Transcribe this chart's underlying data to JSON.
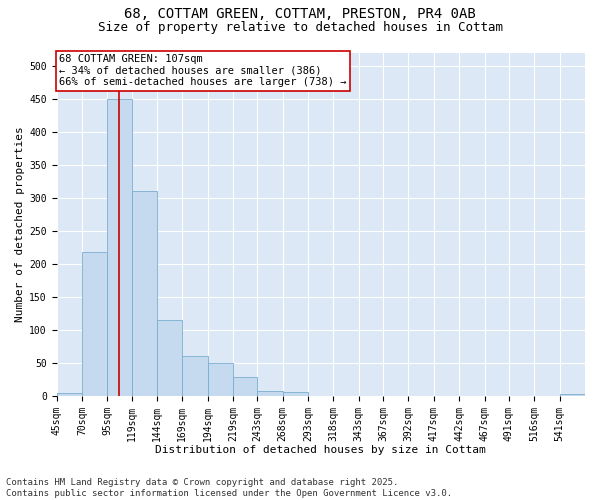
{
  "title_line1": "68, COTTAM GREEN, COTTAM, PRESTON, PR4 0AB",
  "title_line2": "Size of property relative to detached houses in Cottam",
  "xlabel": "Distribution of detached houses by size in Cottam",
  "ylabel": "Number of detached properties",
  "bar_color": "#c5d9ef",
  "bar_edge_color": "#7aadce",
  "background_color": "#dce8f5",
  "grid_color": "#ffffff",
  "annotation_box_color": "#cc0000",
  "annotation_text": "68 COTTAM GREEN: 107sqm\n← 34% of detached houses are smaller (386)\n66% of semi-detached houses are larger (738) →",
  "red_line_x": 107,
  "property_line_color": "#cc0000",
  "categories": [
    "45sqm",
    "70sqm",
    "95sqm",
    "119sqm",
    "144sqm",
    "169sqm",
    "194sqm",
    "219sqm",
    "243sqm",
    "268sqm",
    "293sqm",
    "318sqm",
    "343sqm",
    "367sqm",
    "392sqm",
    "417sqm",
    "442sqm",
    "467sqm",
    "491sqm",
    "516sqm",
    "541sqm"
  ],
  "bin_left": [
    45,
    70,
    95,
    119,
    144,
    169,
    194,
    219,
    243,
    268,
    293,
    318,
    343,
    367,
    392,
    417,
    442,
    467,
    491,
    516,
    541
  ],
  "bin_right": [
    70,
    95,
    119,
    144,
    169,
    194,
    219,
    243,
    268,
    293,
    318,
    343,
    367,
    392,
    417,
    442,
    467,
    491,
    516,
    541,
    566
  ],
  "bar_heights": [
    5,
    218,
    450,
    310,
    115,
    60,
    50,
    28,
    8,
    6,
    0,
    0,
    0,
    0,
    0,
    0,
    0,
    0,
    0,
    0,
    3
  ],
  "ylim": [
    0,
    520
  ],
  "yticks": [
    0,
    50,
    100,
    150,
    200,
    250,
    300,
    350,
    400,
    450,
    500
  ],
  "xlim_left": 45,
  "xlim_right": 566,
  "footer_text": "Contains HM Land Registry data © Crown copyright and database right 2025.\nContains public sector information licensed under the Open Government Licence v3.0.",
  "title_fontsize": 10,
  "subtitle_fontsize": 9,
  "axis_label_fontsize": 8,
  "tick_fontsize": 7,
  "annotation_fontsize": 7.5,
  "footer_fontsize": 6.5
}
